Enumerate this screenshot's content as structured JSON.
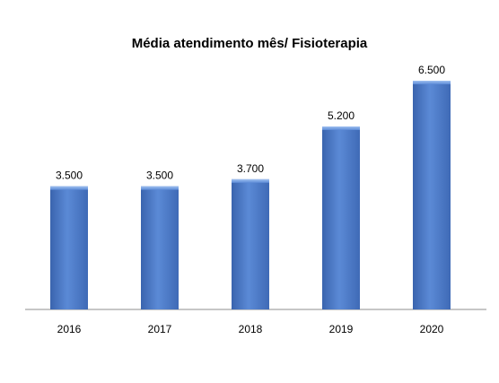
{
  "chart_data": {
    "type": "bar",
    "title": "Média atendimento mês/ Fisioterapia",
    "xlabel": "",
    "ylabel": "",
    "categories": [
      "2016",
      "2017",
      "2018",
      "2019",
      "2020"
    ],
    "values": [
      3500,
      3500,
      3700,
      5200,
      6500
    ],
    "value_labels": [
      "3.500",
      "3.500",
      "3.700",
      "5.200",
      "6.500"
    ],
    "ylim": [
      0,
      6500
    ],
    "grid": false,
    "legend": "none",
    "bar_color": "#4a78c8"
  }
}
